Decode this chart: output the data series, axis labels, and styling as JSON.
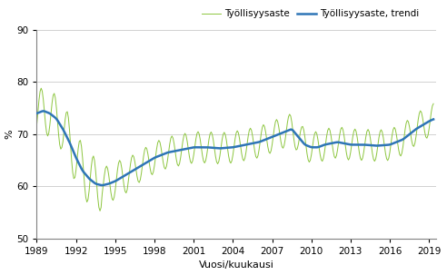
{
  "title": "",
  "ylabel": "%",
  "xlabel": "Vuosi/kuukausi",
  "legend_entries": [
    "Työllisyysaste",
    "Työllisyysaste, trendi"
  ],
  "line_color_employment": "#8dc63f",
  "line_color_trend": "#2e75b6",
  "ylim": [
    50,
    90
  ],
  "yticks": [
    50,
    60,
    70,
    80,
    90
  ],
  "xticks": [
    1989,
    1992,
    1995,
    1998,
    2001,
    2004,
    2007,
    2010,
    2013,
    2016,
    2019
  ],
  "start_year": 1989,
  "start_month": 1,
  "end_year": 2019,
  "end_month": 5,
  "background_color": "#ffffff",
  "grid_color": "#bfbfbf"
}
